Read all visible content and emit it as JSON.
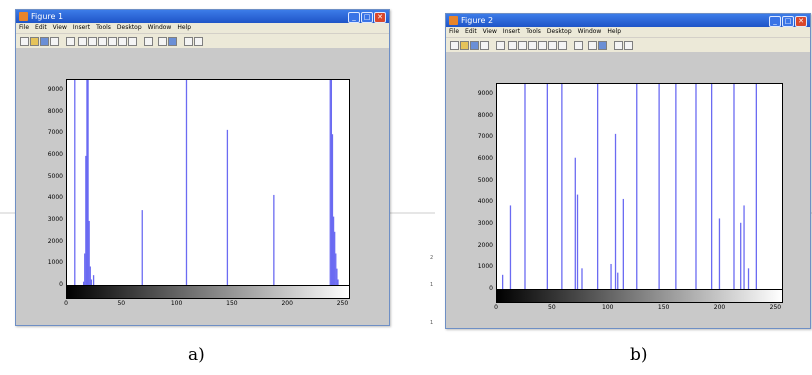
{
  "figures": [
    {
      "window_title": "Figure 1",
      "menu": [
        "File",
        "Edit",
        "View",
        "Insert",
        "Tools",
        "Desktop",
        "Window",
        "Help"
      ],
      "y_ticks": [
        "9000",
        "8000",
        "7000",
        "6000",
        "5000",
        "4000",
        "3000",
        "2000",
        "1000",
        "0"
      ],
      "x_ticks": [
        "0",
        "50",
        "100",
        "150",
        "200",
        "250"
      ],
      "caption": "a)",
      "chart_data": {
        "type": "bar",
        "xlim": [
          0,
          255
        ],
        "ylim": [
          0,
          9500
        ],
        "bars": [
          {
            "x": 7,
            "y": 9500
          },
          {
            "x": 15,
            "y": 200
          },
          {
            "x": 16,
            "y": 1500
          },
          {
            "x": 17,
            "y": 6000
          },
          {
            "x": 18,
            "y": 9500
          },
          {
            "x": 19,
            "y": 9500
          },
          {
            "x": 20,
            "y": 3000
          },
          {
            "x": 21,
            "y": 900
          },
          {
            "x": 22,
            "y": 300
          },
          {
            "x": 24,
            "y": 500
          },
          {
            "x": 68,
            "y": 3500
          },
          {
            "x": 108,
            "y": 9500
          },
          {
            "x": 145,
            "y": 7200
          },
          {
            "x": 187,
            "y": 4200
          },
          {
            "x": 238,
            "y": 9500
          },
          {
            "x": 239,
            "y": 9500
          },
          {
            "x": 240,
            "y": 7000
          },
          {
            "x": 241,
            "y": 3200
          },
          {
            "x": 242,
            "y": 2500
          },
          {
            "x": 243,
            "y": 1500
          },
          {
            "x": 244,
            "y": 800
          },
          {
            "x": 245,
            "y": 300
          }
        ]
      }
    },
    {
      "window_title": "Figure 2",
      "menu": [
        "File",
        "Edit",
        "View",
        "Insert",
        "Tools",
        "Desktop",
        "Window",
        "Help"
      ],
      "y_ticks": [
        "9000",
        "8000",
        "7000",
        "6000",
        "5000",
        "4000",
        "3000",
        "2000",
        "1000",
        "0"
      ],
      "x_ticks": [
        "0",
        "50",
        "100",
        "150",
        "200",
        "250"
      ],
      "caption": "b)",
      "chart_data": {
        "type": "bar",
        "xlim": [
          0,
          255
        ],
        "ylim": [
          0,
          9500
        ],
        "bars": [
          {
            "x": 5,
            "y": 700
          },
          {
            "x": 12,
            "y": 3900
          },
          {
            "x": 25,
            "y": 9500
          },
          {
            "x": 45,
            "y": 9500
          },
          {
            "x": 58,
            "y": 9500
          },
          {
            "x": 70,
            "y": 6100
          },
          {
            "x": 72,
            "y": 4400
          },
          {
            "x": 76,
            "y": 1000
          },
          {
            "x": 90,
            "y": 9500
          },
          {
            "x": 102,
            "y": 1200
          },
          {
            "x": 106,
            "y": 7200
          },
          {
            "x": 108,
            "y": 800
          },
          {
            "x": 113,
            "y": 4200
          },
          {
            "x": 125,
            "y": 9500
          },
          {
            "x": 145,
            "y": 9500
          },
          {
            "x": 160,
            "y": 9500
          },
          {
            "x": 178,
            "y": 9500
          },
          {
            "x": 192,
            "y": 9500
          },
          {
            "x": 199,
            "y": 3300
          },
          {
            "x": 212,
            "y": 9500
          },
          {
            "x": 218,
            "y": 3100
          },
          {
            "x": 221,
            "y": 3900
          },
          {
            "x": 225,
            "y": 1000
          },
          {
            "x": 232,
            "y": 9500
          }
        ]
      }
    }
  ],
  "side_labels": [
    "2",
    "1",
    "1"
  ],
  "colors": {
    "bar": "#6b6bf2",
    "window_bg": "#c9c9c9",
    "titlebar": "#1f54c7"
  }
}
